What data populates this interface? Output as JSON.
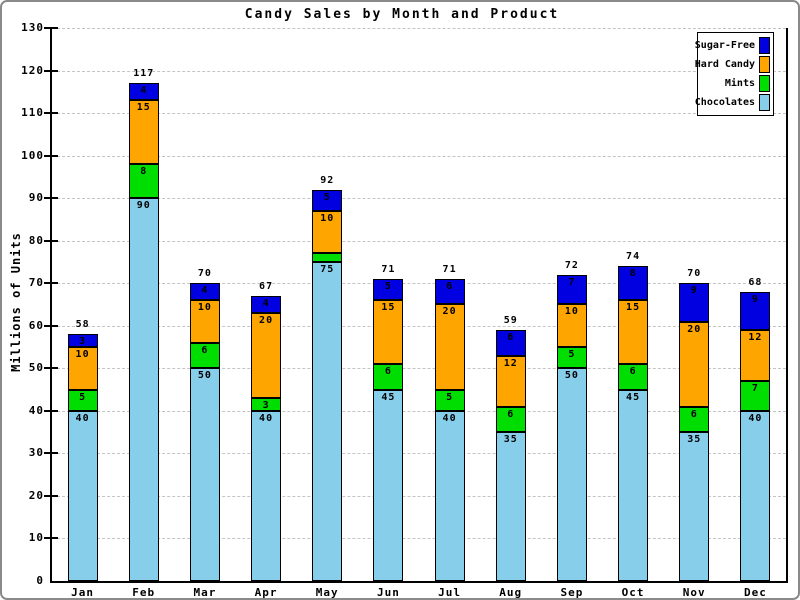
{
  "title": "Candy Sales by Month and Product",
  "y_axis_title": "Millions of Units",
  "chart_data": {
    "type": "bar",
    "stacked": true,
    "title": "Candy Sales by Month and Product",
    "ylabel": "Millions of Units",
    "xlabel": "",
    "ylim": [
      0,
      130
    ],
    "ytick_step": 10,
    "grid": true,
    "gridline_style": "dashed",
    "categories": [
      "Jan",
      "Feb",
      "Mar",
      "Apr",
      "May",
      "Jun",
      "Jul",
      "Aug",
      "Sep",
      "Oct",
      "Nov",
      "Dec"
    ],
    "series": [
      {
        "name": "Chocolates",
        "color": "#87CEEB",
        "values": [
          40,
          90,
          50,
          40,
          75,
          45,
          40,
          35,
          50,
          45,
          35,
          40
        ]
      },
      {
        "name": "Mints",
        "color": "#00DD00",
        "values": [
          5,
          8,
          6,
          3,
          2,
          6,
          5,
          6,
          5,
          6,
          6,
          7
        ]
      },
      {
        "name": "Hard Candy",
        "color": "#FFA500",
        "values": [
          10,
          15,
          10,
          20,
          10,
          15,
          20,
          12,
          10,
          15,
          20,
          12
        ]
      },
      {
        "name": "Sugar-Free",
        "color": "#0000E0",
        "values": [
          3,
          4,
          4,
          4,
          5,
          5,
          6,
          6,
          7,
          8,
          9,
          9
        ]
      }
    ],
    "totals": [
      58,
      117,
      70,
      67,
      92,
      71,
      71,
      59,
      72,
      74,
      70,
      68
    ],
    "legend_position": "top-right",
    "legend_order": [
      "Sugar-Free",
      "Hard Candy",
      "Mints",
      "Chocolates"
    ]
  }
}
